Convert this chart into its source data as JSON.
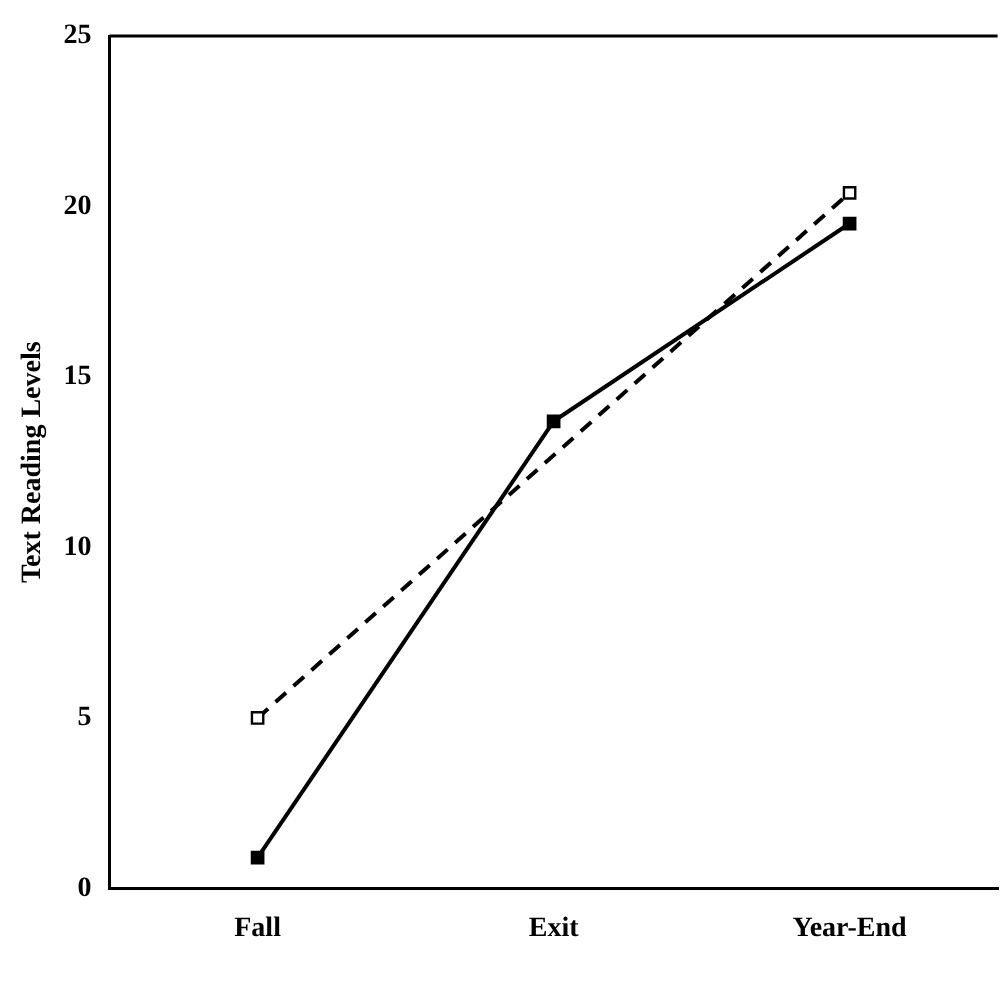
{
  "chart_data": {
    "type": "line",
    "ylabel": "Text Reading Levels",
    "categories": [
      "Fall",
      "Exit",
      "Year-End"
    ],
    "series": [
      {
        "color": "#000000",
        "values": [
          0.9,
          13.7,
          19.5
        ],
        "line_style": "solid"
      },
      {
        "color": "#000000",
        "values": [
          5.0,
          null,
          20.4
        ],
        "line_style": "dashed"
      }
    ],
    "ylim": [
      0,
      25
    ],
    "yticks": [
      0,
      5,
      10,
      15,
      20,
      25
    ],
    "grid": false,
    "legend": false,
    "marker": "square"
  }
}
